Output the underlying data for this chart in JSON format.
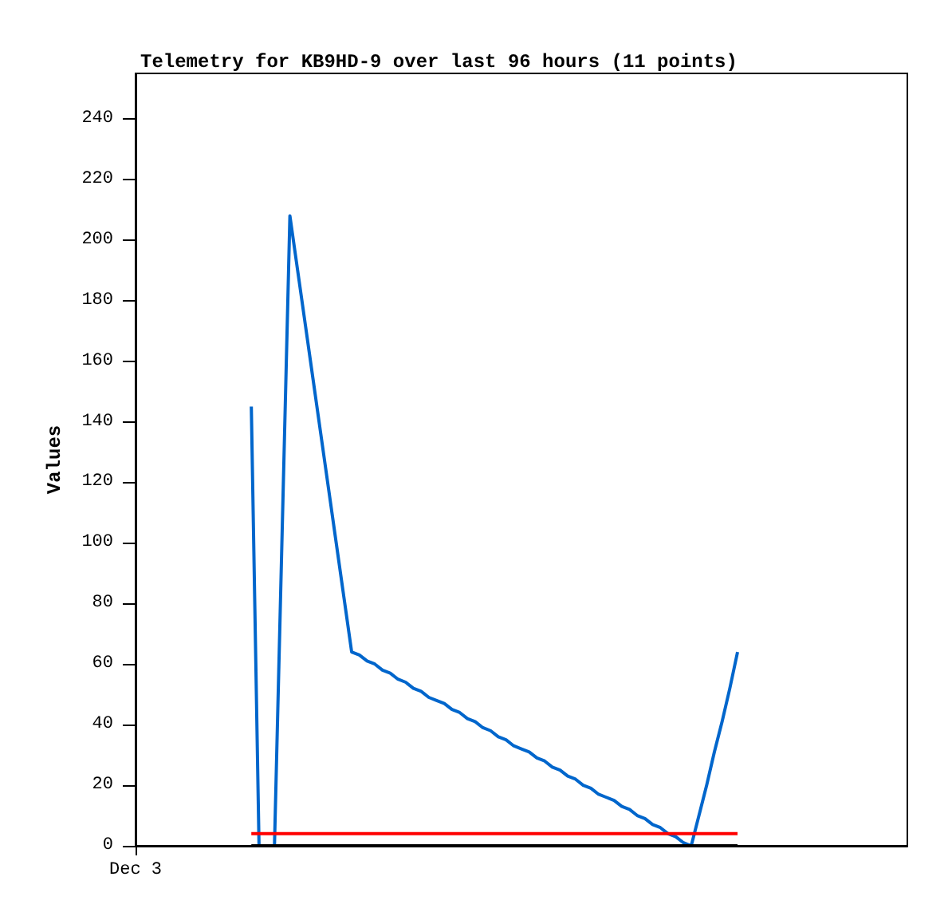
{
  "chart_data": {
    "type": "line",
    "title": "Telemetry for KB9HD-9 over last 96 hours (11 points)",
    "ylabel": "Values",
    "categories": [
      "Dec 3",
      null,
      null,
      null,
      null,
      null,
      null,
      null,
      null,
      null,
      null,
      null,
      null,
      null,
      null,
      null,
      null,
      null,
      null,
      null,
      null,
      null,
      null,
      null,
      null,
      null,
      null,
      null,
      null,
      null,
      null,
      null,
      null,
      null,
      null,
      null,
      null,
      null,
      null,
      null,
      null,
      null,
      null,
      null,
      null,
      null,
      null,
      null,
      null,
      null,
      null,
      null,
      null,
      null,
      null,
      null,
      null,
      null,
      null,
      null,
      null,
      null,
      null,
      null,
      null,
      null,
      null,
      null,
      null,
      null,
      null,
      null,
      null,
      null,
      null,
      null,
      null,
      null,
      null,
      null,
      null,
      null,
      null,
      null,
      null,
      null,
      null,
      null,
      null,
      null,
      null,
      null,
      null,
      null,
      null,
      null,
      null,
      null,
      null,
      null,
      null
    ],
    "ylim": [
      0,
      255
    ],
    "yticks": [
      0,
      20,
      40,
      60,
      80,
      100,
      120,
      140,
      160,
      180,
      200,
      220,
      240
    ],
    "grid": false,
    "marker": "none",
    "line_style": "solid",
    "series": [
      {
        "color": "#0066cc",
        "values": [
          null,
          null,
          null,
          null,
          null,
          null,
          null,
          null,
          null,
          null,
          null,
          null,
          null,
          null,
          null,
          145,
          0,
          0,
          0,
          104,
          208,
          190,
          172,
          154,
          136,
          118,
          100,
          82,
          64,
          63,
          61,
          60,
          58,
          57,
          55,
          54,
          52,
          51,
          49,
          48,
          47,
          45,
          44,
          42,
          41,
          39,
          38,
          36,
          35,
          33,
          32,
          31,
          29,
          28,
          26,
          25,
          23,
          22,
          20,
          19,
          17,
          16,
          15,
          13,
          12,
          10,
          9,
          7,
          6,
          4,
          3,
          1,
          0,
          10,
          20,
          31,
          41,
          52,
          64,
          null,
          null,
          null,
          null,
          null,
          null,
          null,
          null,
          null,
          null,
          null,
          null,
          null,
          null,
          null,
          null,
          null,
          null,
          null,
          null,
          null,
          null
        ]
      },
      {
        "color": "#ff0000",
        "values": [
          null,
          null,
          null,
          null,
          null,
          null,
          null,
          null,
          null,
          null,
          null,
          null,
          null,
          null,
          null,
          4,
          4,
          4,
          4,
          4,
          4,
          4,
          4,
          4,
          4,
          4,
          4,
          4,
          4,
          4,
          4,
          4,
          4,
          4,
          4,
          4,
          4,
          4,
          4,
          4,
          4,
          4,
          4,
          4,
          4,
          4,
          4,
          4,
          4,
          4,
          4,
          4,
          4,
          4,
          4,
          4,
          4,
          4,
          4,
          4,
          4,
          4,
          4,
          4,
          4,
          4,
          4,
          4,
          4,
          4,
          4,
          4,
          4,
          4,
          4,
          4,
          4,
          4,
          4,
          null,
          null,
          null,
          null,
          null,
          null,
          null,
          null,
          null,
          null,
          null,
          null,
          null,
          null,
          null,
          null,
          null,
          null,
          null,
          null,
          null,
          null
        ]
      },
      {
        "color": "#000000",
        "values": [
          null,
          null,
          null,
          null,
          null,
          null,
          null,
          null,
          null,
          null,
          null,
          null,
          null,
          null,
          null,
          0,
          0,
          0,
          0,
          0,
          0,
          0,
          0,
          0,
          0,
          0,
          0,
          0,
          0,
          0,
          0,
          0,
          0,
          0,
          0,
          0,
          0,
          0,
          0,
          0,
          0,
          0,
          0,
          0,
          0,
          0,
          0,
          0,
          0,
          0,
          0,
          0,
          0,
          0,
          0,
          0,
          0,
          0,
          0,
          0,
          0,
          0,
          0,
          0,
          0,
          0,
          0,
          0,
          0,
          0,
          0,
          0,
          0,
          0,
          0,
          0,
          0,
          0,
          0,
          null,
          null,
          null,
          null,
          null,
          null,
          null,
          null,
          null,
          null,
          null,
          null,
          null,
          null,
          null,
          null,
          null,
          null,
          null,
          null,
          null,
          null
        ]
      }
    ]
  }
}
